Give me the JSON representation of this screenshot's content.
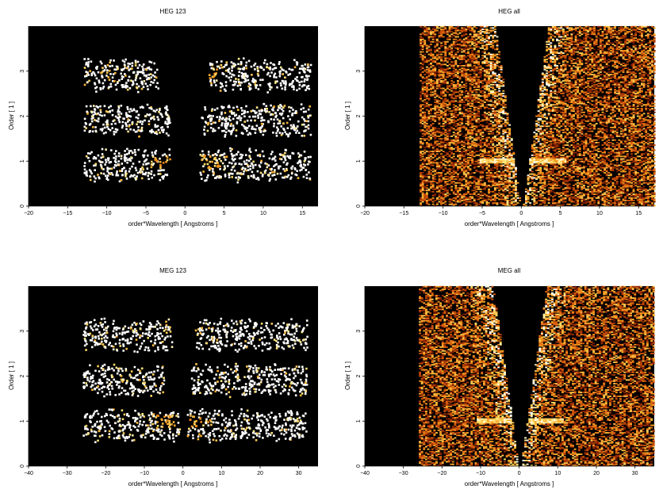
{
  "chart_data": [
    {
      "type": "heatmap",
      "title": "HEG 123",
      "xlabel": "order*Wavelength [ Angstroms ]",
      "ylabel": "Order [ 1 ]",
      "xlim": [
        -20,
        17
      ],
      "ylim": [
        0,
        4
      ],
      "xticks": [
        -20,
        -15,
        -10,
        -5,
        0,
        5,
        10,
        15
      ],
      "yticks": [
        0,
        1,
        2,
        3
      ],
      "colormap": "black-red-orange-yellow-white",
      "background": "#000000",
      "bands": [
        {
          "order": 1,
          "x_ranges": [
            [
              -13,
              -2
            ],
            [
              1.8,
              16
            ]
          ],
          "hot_ranges": [
            [
              -4.5,
              -2
            ],
            [
              2,
              5
            ]
          ]
        },
        {
          "order": 2,
          "x_ranges": [
            [
              -13,
              -2
            ],
            [
              2,
              16
            ]
          ],
          "hot_ranges": []
        },
        {
          "order": 3,
          "x_ranges": [
            [
              -13,
              -3.5
            ],
            [
              3,
              16
            ]
          ],
          "hot_ranges": [
            [
              3,
              4
            ]
          ]
        }
      ]
    },
    {
      "type": "heatmap",
      "title": "HEG all",
      "xlabel": "order*Wavelength [ Angstroms ]",
      "ylabel": "Order [ 1 ]",
      "xlim": [
        -20,
        17
      ],
      "ylim": [
        0,
        4
      ],
      "xticks": [
        -20,
        -15,
        -10,
        -5,
        0,
        5,
        10,
        15
      ],
      "yticks": [
        0,
        1,
        2,
        3
      ],
      "colormap": "black-red-orange-yellow-white",
      "background": "#000000",
      "data_extent_x": [
        -13,
        17
      ]
    },
    {
      "type": "heatmap",
      "title": "MEG 123",
      "xlabel": "order*Wavelength [ Angstroms ]",
      "ylabel": "Order [ 1 ]",
      "xlim": [
        -40,
        35
      ],
      "ylim": [
        0,
        4
      ],
      "xticks": [
        -40,
        -30,
        -20,
        -10,
        0,
        10,
        20,
        30
      ],
      "yticks": [
        0,
        1,
        2,
        3
      ],
      "colormap": "black-red-orange-yellow-white",
      "background": "#000000",
      "bands": [
        {
          "order": 1,
          "x_ranges": [
            [
              -26,
              -1
            ],
            [
              1,
              32
            ]
          ],
          "hot_ranges": [
            [
              -7,
              -2
            ],
            [
              1,
              7
            ]
          ]
        },
        {
          "order": 2,
          "x_ranges": [
            [
              -26,
              -5
            ],
            [
              2,
              32
            ]
          ],
          "hot_ranges": []
        },
        {
          "order": 3,
          "x_ranges": [
            [
              -26,
              -3
            ],
            [
              3,
              32
            ]
          ],
          "hot_ranges": []
        }
      ]
    },
    {
      "type": "heatmap",
      "title": "MEG all",
      "xlabel": "order*Wavelength [ Angstroms ]",
      "ylabel": "Order [ 1 ]",
      "xlim": [
        -40,
        35
      ],
      "ylim": [
        0,
        4
      ],
      "xticks": [
        -40,
        -30,
        -20,
        -10,
        0,
        10,
        20,
        30
      ],
      "yticks": [
        0,
        1,
        2,
        3
      ],
      "colormap": "black-red-orange-yellow-white",
      "background": "#000000",
      "data_extent_x": [
        -26,
        35
      ]
    }
  ]
}
